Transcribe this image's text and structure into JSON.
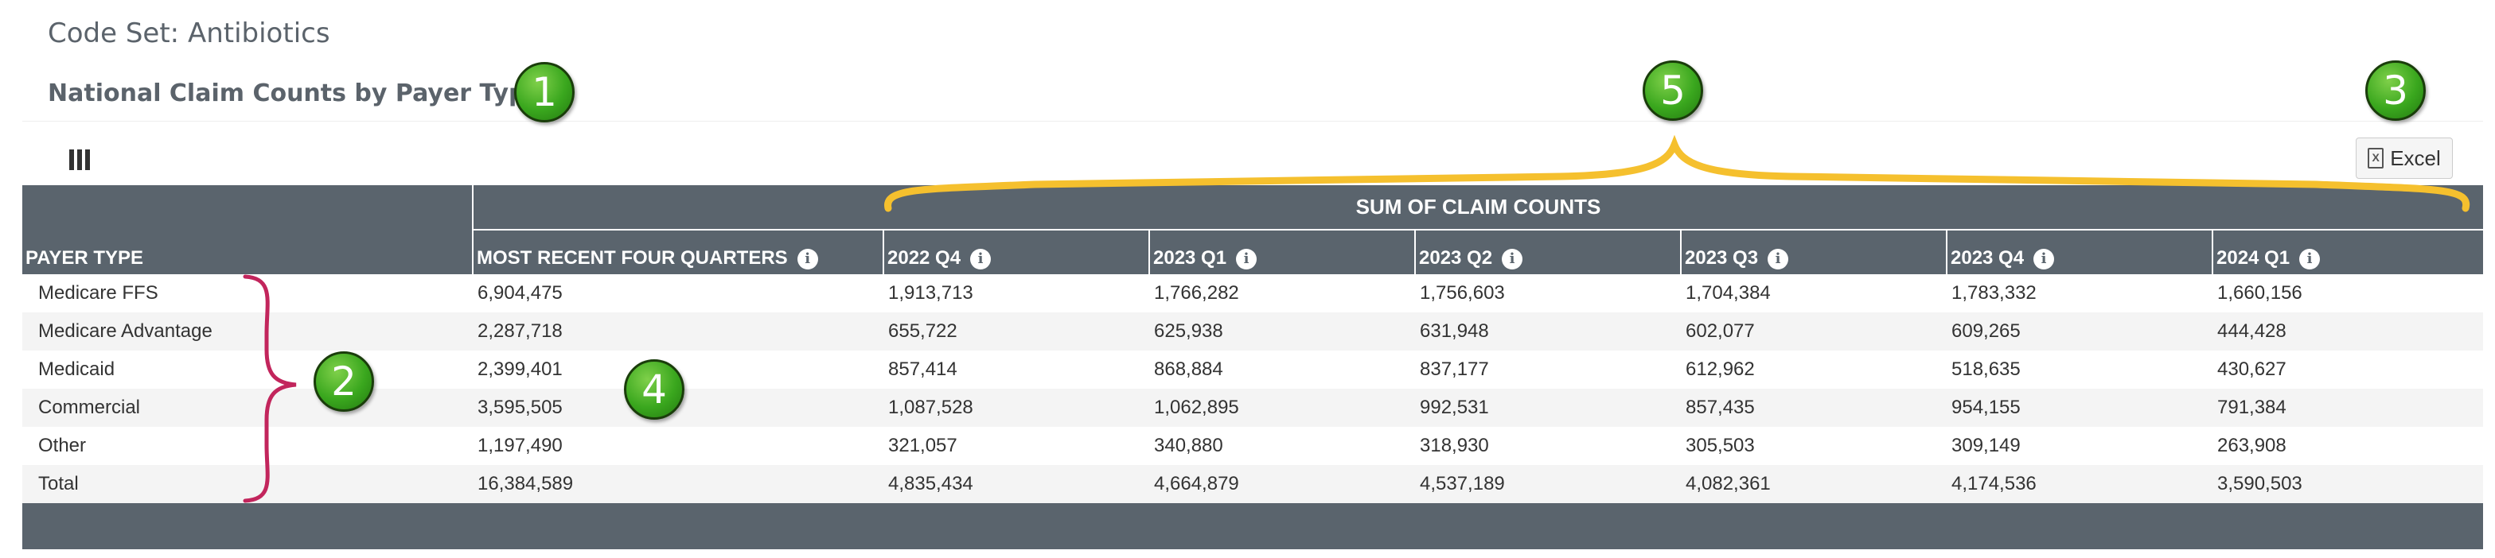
{
  "header": {
    "code_set": "Code Set: Antibiotics",
    "section_title": "National Claim Counts by Payer Type"
  },
  "toolbar": {
    "columns_icon": "columns-icon",
    "excel_label": "Excel",
    "excel_icon_glyph": "X"
  },
  "table": {
    "group_header": "SUM OF CLAIM COUNTS",
    "payer_header": "PAYER TYPE",
    "columns": [
      "MOST RECENT FOUR QUARTERS",
      "2022 Q4",
      "2023 Q1",
      "2023 Q2",
      "2023 Q3",
      "2023 Q4",
      "2024 Q1"
    ],
    "info_glyph": "i",
    "rows": [
      {
        "payer": "Medicare FFS",
        "values": [
          "6,904,475",
          "1,913,713",
          "1,766,282",
          "1,756,603",
          "1,704,384",
          "1,783,332",
          "1,660,156"
        ]
      },
      {
        "payer": "Medicare Advantage",
        "values": [
          "2,287,718",
          "655,722",
          "625,938",
          "631,948",
          "602,077",
          "609,265",
          "444,428"
        ]
      },
      {
        "payer": "Medicaid",
        "values": [
          "2,399,401",
          "857,414",
          "868,884",
          "837,177",
          "612,962",
          "518,635",
          "430,627"
        ]
      },
      {
        "payer": "Commercial",
        "values": [
          "3,595,505",
          "1,087,528",
          "1,062,895",
          "992,531",
          "857,435",
          "954,155",
          "791,384"
        ]
      },
      {
        "payer": "Other",
        "values": [
          "1,197,490",
          "321,057",
          "340,880",
          "318,930",
          "305,503",
          "309,149",
          "263,908"
        ]
      },
      {
        "payer": "Total",
        "values": [
          "16,384,589",
          "4,835,434",
          "4,664,879",
          "4,537,189",
          "4,082,361",
          "4,174,536",
          "3,590,503"
        ]
      }
    ]
  },
  "annotations": {
    "a1": "1",
    "a2": "2",
    "a3": "3",
    "a4": "4",
    "a5": "5"
  },
  "colors": {
    "header_bg": "#5a646d",
    "row_alt": "#f4f4f4",
    "annotation_green": "#3aa71e",
    "brace_red": "#c2255c",
    "brace_yellow": "#f5c02e"
  }
}
